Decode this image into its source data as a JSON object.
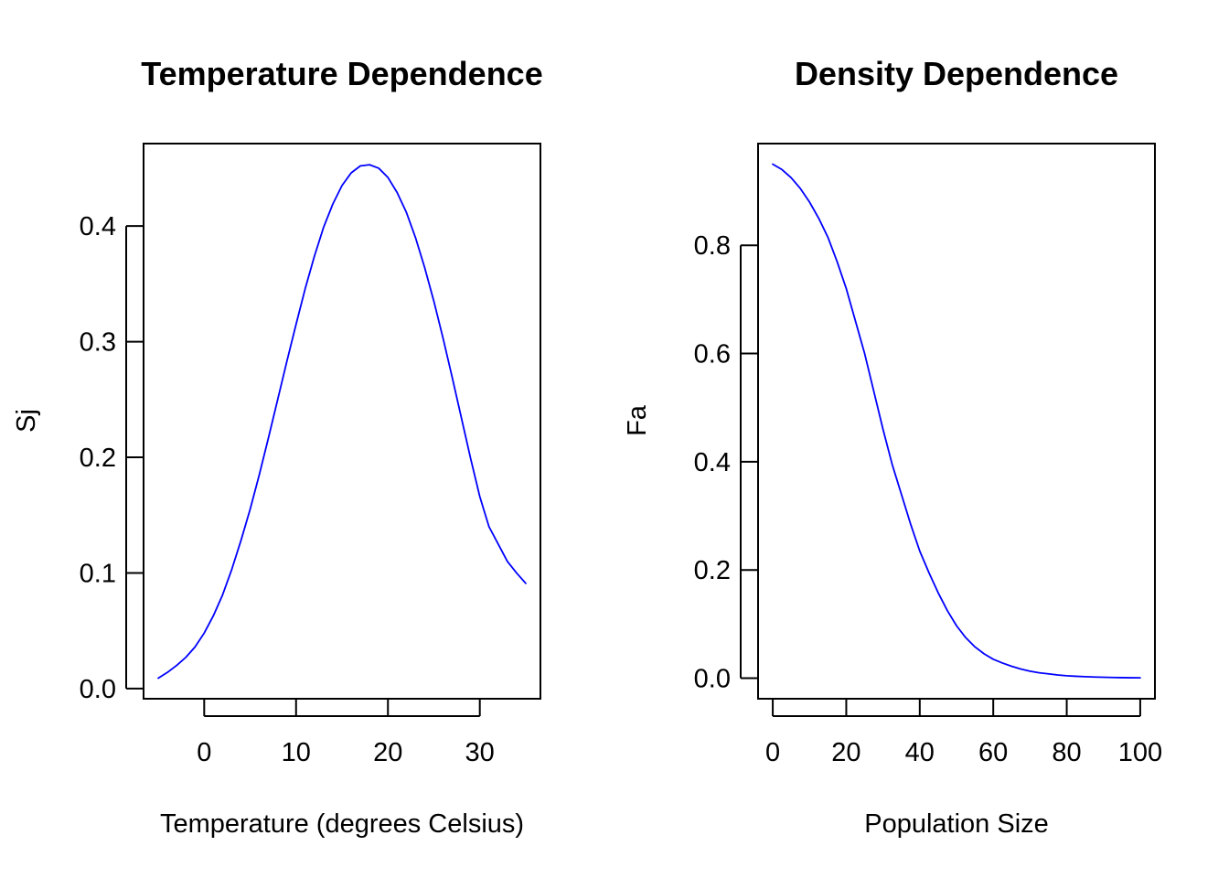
{
  "chart_data": [
    {
      "type": "line",
      "title": "Temperature Dependence",
      "xlabel": "Temperature (degrees Celsius)",
      "ylabel": "Sj",
      "xlim": [
        -6.6,
        36.6
      ],
      "ylim": [
        -0.0088,
        0.4713
      ],
      "x_ticks": [
        0,
        10,
        20,
        30
      ],
      "x_tick_labels": [
        "0",
        "10",
        "20",
        "30"
      ],
      "y_ticks": [
        0.0,
        0.1,
        0.2,
        0.3,
        0.4
      ],
      "y_tick_labels": [
        "0.0",
        "0.1",
        "0.2",
        "0.3",
        "0.4"
      ],
      "grid": false,
      "series": [
        {
          "color": "#0000ff",
          "x": [
            -5,
            -4,
            -3,
            -2,
            -1,
            0,
            1,
            2,
            3,
            4,
            5,
            6,
            7,
            8,
            9,
            10,
            11,
            12,
            13,
            14,
            15,
            16,
            17,
            18,
            19,
            20,
            21,
            22,
            23,
            24,
            25,
            26,
            27,
            28,
            29,
            30,
            31,
            32,
            33,
            34,
            35
          ],
          "y": [
            0.009,
            0.014,
            0.02,
            0.027,
            0.036,
            0.048,
            0.063,
            0.081,
            0.103,
            0.128,
            0.155,
            0.185,
            0.217,
            0.25,
            0.283,
            0.315,
            0.346,
            0.374,
            0.399,
            0.419,
            0.435,
            0.446,
            0.452,
            0.453,
            0.45,
            0.442,
            0.429,
            0.412,
            0.39,
            0.364,
            0.335,
            0.303,
            0.269,
            0.234,
            0.199,
            0.166,
            0.14,
            0.125,
            0.11,
            0.1,
            0.091
          ]
        }
      ]
    },
    {
      "type": "line",
      "title": "Density Dependence",
      "xlabel": "Population Size",
      "ylabel": "Fa",
      "xlim": [
        -4,
        104
      ],
      "ylim": [
        -0.038,
        0.988
      ],
      "x_ticks": [
        0,
        20,
        40,
        60,
        80,
        100
      ],
      "x_tick_labels": [
        "0",
        "20",
        "40",
        "60",
        "80",
        "100"
      ],
      "y_ticks": [
        0.0,
        0.2,
        0.4,
        0.6,
        0.8
      ],
      "y_tick_labels": [
        "0.0",
        "0.2",
        "0.4",
        "0.6",
        "0.8"
      ],
      "grid": false,
      "series": [
        {
          "color": "#0000ff",
          "x": [
            0,
            2.5,
            5,
            7.5,
            10,
            12.5,
            15,
            17.5,
            20,
            22.5,
            25,
            27.5,
            30,
            32.5,
            35,
            37.5,
            40,
            42.5,
            45,
            47.5,
            50,
            52.5,
            55,
            57.5,
            60,
            62.5,
            65,
            67.5,
            70,
            72.5,
            75,
            77.5,
            80,
            82.5,
            85,
            87.5,
            90,
            92.5,
            95,
            97.5,
            100
          ],
          "y": [
            0.95,
            0.94,
            0.925,
            0.905,
            0.88,
            0.85,
            0.815,
            0.77,
            0.72,
            0.66,
            0.6,
            0.53,
            0.46,
            0.395,
            0.34,
            0.285,
            0.235,
            0.195,
            0.158,
            0.125,
            0.097,
            0.075,
            0.058,
            0.045,
            0.035,
            0.028,
            0.022,
            0.017,
            0.013,
            0.01,
            0.008,
            0.006,
            0.0045,
            0.0035,
            0.0028,
            0.0022,
            0.0017,
            0.0013,
            0.001,
            0.0008,
            0.0006
          ]
        }
      ]
    }
  ]
}
